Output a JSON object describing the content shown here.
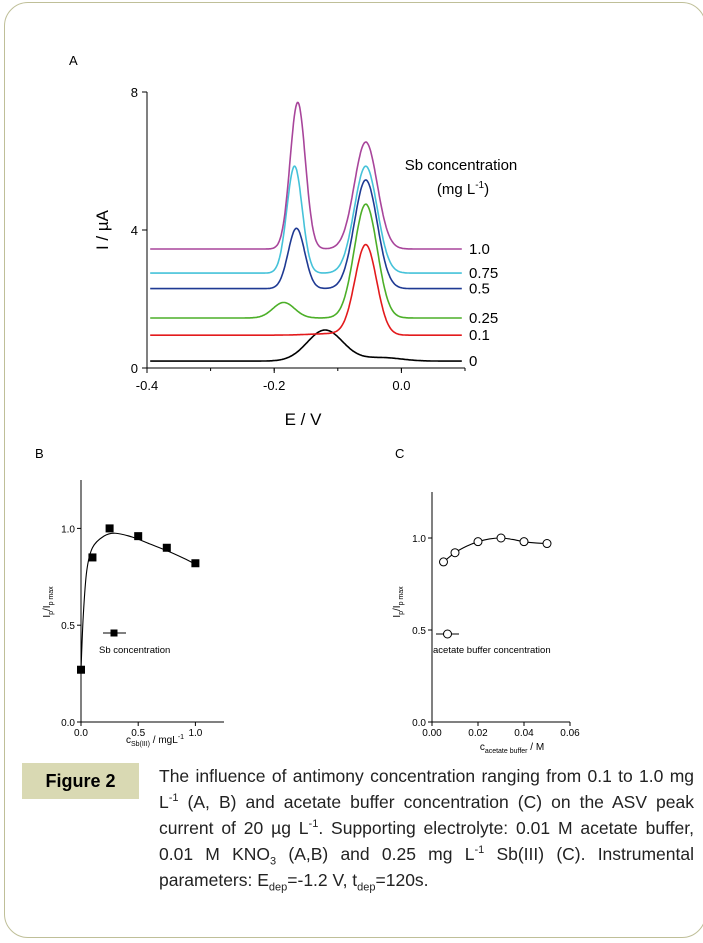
{
  "chart_data": [
    {
      "type": "line",
      "panel": "A",
      "xlabel": "E / V",
      "ylabel": "I / µA",
      "xlim": [
        -0.4,
        0.1
      ],
      "ylim": [
        0,
        8
      ],
      "xticks": [
        -0.4,
        -0.2,
        0.0
      ],
      "xtick_labels": [
        "-0.4",
        "-0.2",
        "0.0"
      ],
      "yticks": [
        0,
        4,
        8
      ],
      "ytick_labels": [
        "0",
        "4",
        "8"
      ],
      "legend_title_line1": "Sb concentration",
      "legend_title_line2": "(mg L",
      "legend_title_sup": "-1",
      "legend_title_end": ")",
      "series": [
        {
          "name": "0",
          "color": "#000000",
          "baseline": 0.2,
          "peaks": [
            [
              -0.12,
              0.9,
              0.028
            ],
            [
              -0.03,
              0.1,
              0.03
            ]
          ]
        },
        {
          "name": "0.1",
          "color": "#e31a1c",
          "baseline": 0.95,
          "peaks": [
            [
              -0.056,
              2.6,
              0.017
            ],
            [
              -0.1,
              0.05,
              0.04
            ]
          ]
        },
        {
          "name": "0.25",
          "color": "#4caf28",
          "baseline": 1.45,
          "peaks": [
            [
              -0.056,
              3.3,
              0.018
            ],
            [
              -0.185,
              0.45,
              0.017
            ]
          ]
        },
        {
          "name": "0.5",
          "color": "#1f3a93",
          "baseline": 2.3,
          "peaks": [
            [
              -0.056,
              3.15,
              0.018
            ],
            [
              -0.165,
              1.75,
              0.013
            ]
          ]
        },
        {
          "name": "0.75",
          "color": "#45c2d9",
          "baseline": 2.75,
          "peaks": [
            [
              -0.056,
              3.1,
              0.018
            ],
            [
              -0.168,
              3.1,
              0.012
            ]
          ]
        },
        {
          "name": "1.0",
          "color": "#a8459b",
          "baseline": 3.45,
          "peaks": [
            [
              -0.056,
              3.1,
              0.018
            ],
            [
              -0.163,
              4.25,
              0.012
            ]
          ]
        }
      ]
    },
    {
      "type": "scatter",
      "panel": "B",
      "xlabel_main": "c",
      "xlabel_sub": "Sb(III)",
      "xlabel_end": " / mgL",
      "xlabel_sup": "-1",
      "ylabel_main": "I",
      "ylabel_sub1": "p",
      "ylabel_mid": "/I",
      "ylabel_sub2": "p max",
      "xlim": [
        0,
        1.25
      ],
      "ylim": [
        0,
        1.25
      ],
      "xticks": [
        0.0,
        0.5,
        1.0
      ],
      "xtick_labels": [
        "0.0",
        "0.5",
        "1.0"
      ],
      "yticks": [
        0.0,
        0.5,
        1.0
      ],
      "ytick_labels": [
        "0.0",
        "0.5",
        "1.0"
      ],
      "legend": "Sb concentration",
      "x": [
        0.0,
        0.1,
        0.25,
        0.5,
        0.75,
        1.0
      ],
      "y": [
        0.27,
        0.85,
        1.0,
        0.96,
        0.9,
        0.82
      ],
      "fit": [
        [
          0.0,
          0.27
        ],
        [
          0.02,
          0.55
        ],
        [
          0.05,
          0.78
        ],
        [
          0.1,
          0.9
        ],
        [
          0.2,
          0.96
        ],
        [
          0.3,
          0.975
        ],
        [
          0.45,
          0.955
        ],
        [
          0.6,
          0.92
        ],
        [
          0.75,
          0.885
        ],
        [
          0.9,
          0.845
        ],
        [
          1.0,
          0.815
        ]
      ]
    },
    {
      "type": "scatter",
      "panel": "C",
      "xlabel_main": "c",
      "xlabel_sub": "acetate buffer",
      "xlabel_end": " / M",
      "ylabel_main": "I",
      "ylabel_sub1": "p",
      "ylabel_mid": "/I",
      "ylabel_sub2": "p max",
      "xlim": [
        0,
        0.06
      ],
      "ylim": [
        0,
        1.25
      ],
      "xticks": [
        0.0,
        0.02,
        0.04,
        0.06
      ],
      "xtick_labels": [
        "0.00",
        "0.02",
        "0.04",
        "0.06"
      ],
      "yticks": [
        0.0,
        0.5,
        1.0
      ],
      "ytick_labels": [
        "0.0",
        "0.5",
        "1.0"
      ],
      "legend": "acetate buffer concentration",
      "x": [
        0.005,
        0.01,
        0.02,
        0.03,
        0.04,
        0.05
      ],
      "y": [
        0.87,
        0.92,
        0.98,
        1.0,
        0.98,
        0.97
      ],
      "fit": [
        [
          0.005,
          0.87
        ],
        [
          0.01,
          0.92
        ],
        [
          0.015,
          0.955
        ],
        [
          0.02,
          0.98
        ],
        [
          0.025,
          0.995
        ],
        [
          0.03,
          1.0
        ],
        [
          0.035,
          0.992
        ],
        [
          0.04,
          0.98
        ],
        [
          0.045,
          0.973
        ],
        [
          0.05,
          0.97
        ]
      ]
    }
  ],
  "panels": {
    "a": "A",
    "b": "B",
    "c": "C"
  },
  "figure_label": "Figure 2",
  "caption": {
    "t1": "The influence of antimony concentration ranging from 0.1 to 1.0 mg L",
    "s1": "-1",
    "t2": " (A, B) and acetate buffer concentration (C) on the ASV peak current of 20 µg L",
    "s2": "-1",
    "t3": ". Supporting electrolyte: 0.01 M acetate buffer, 0.01 M KNO",
    "sub3": "3",
    "t4": " (A,B) and 0.25 mg L",
    "s4": "-1",
    "t5": " Sb(III) (C). Instrumental parameters: E",
    "sub5": "dep",
    "t6": "=-1.2 V, t",
    "sub6": "dep",
    "t7": "=120s."
  }
}
